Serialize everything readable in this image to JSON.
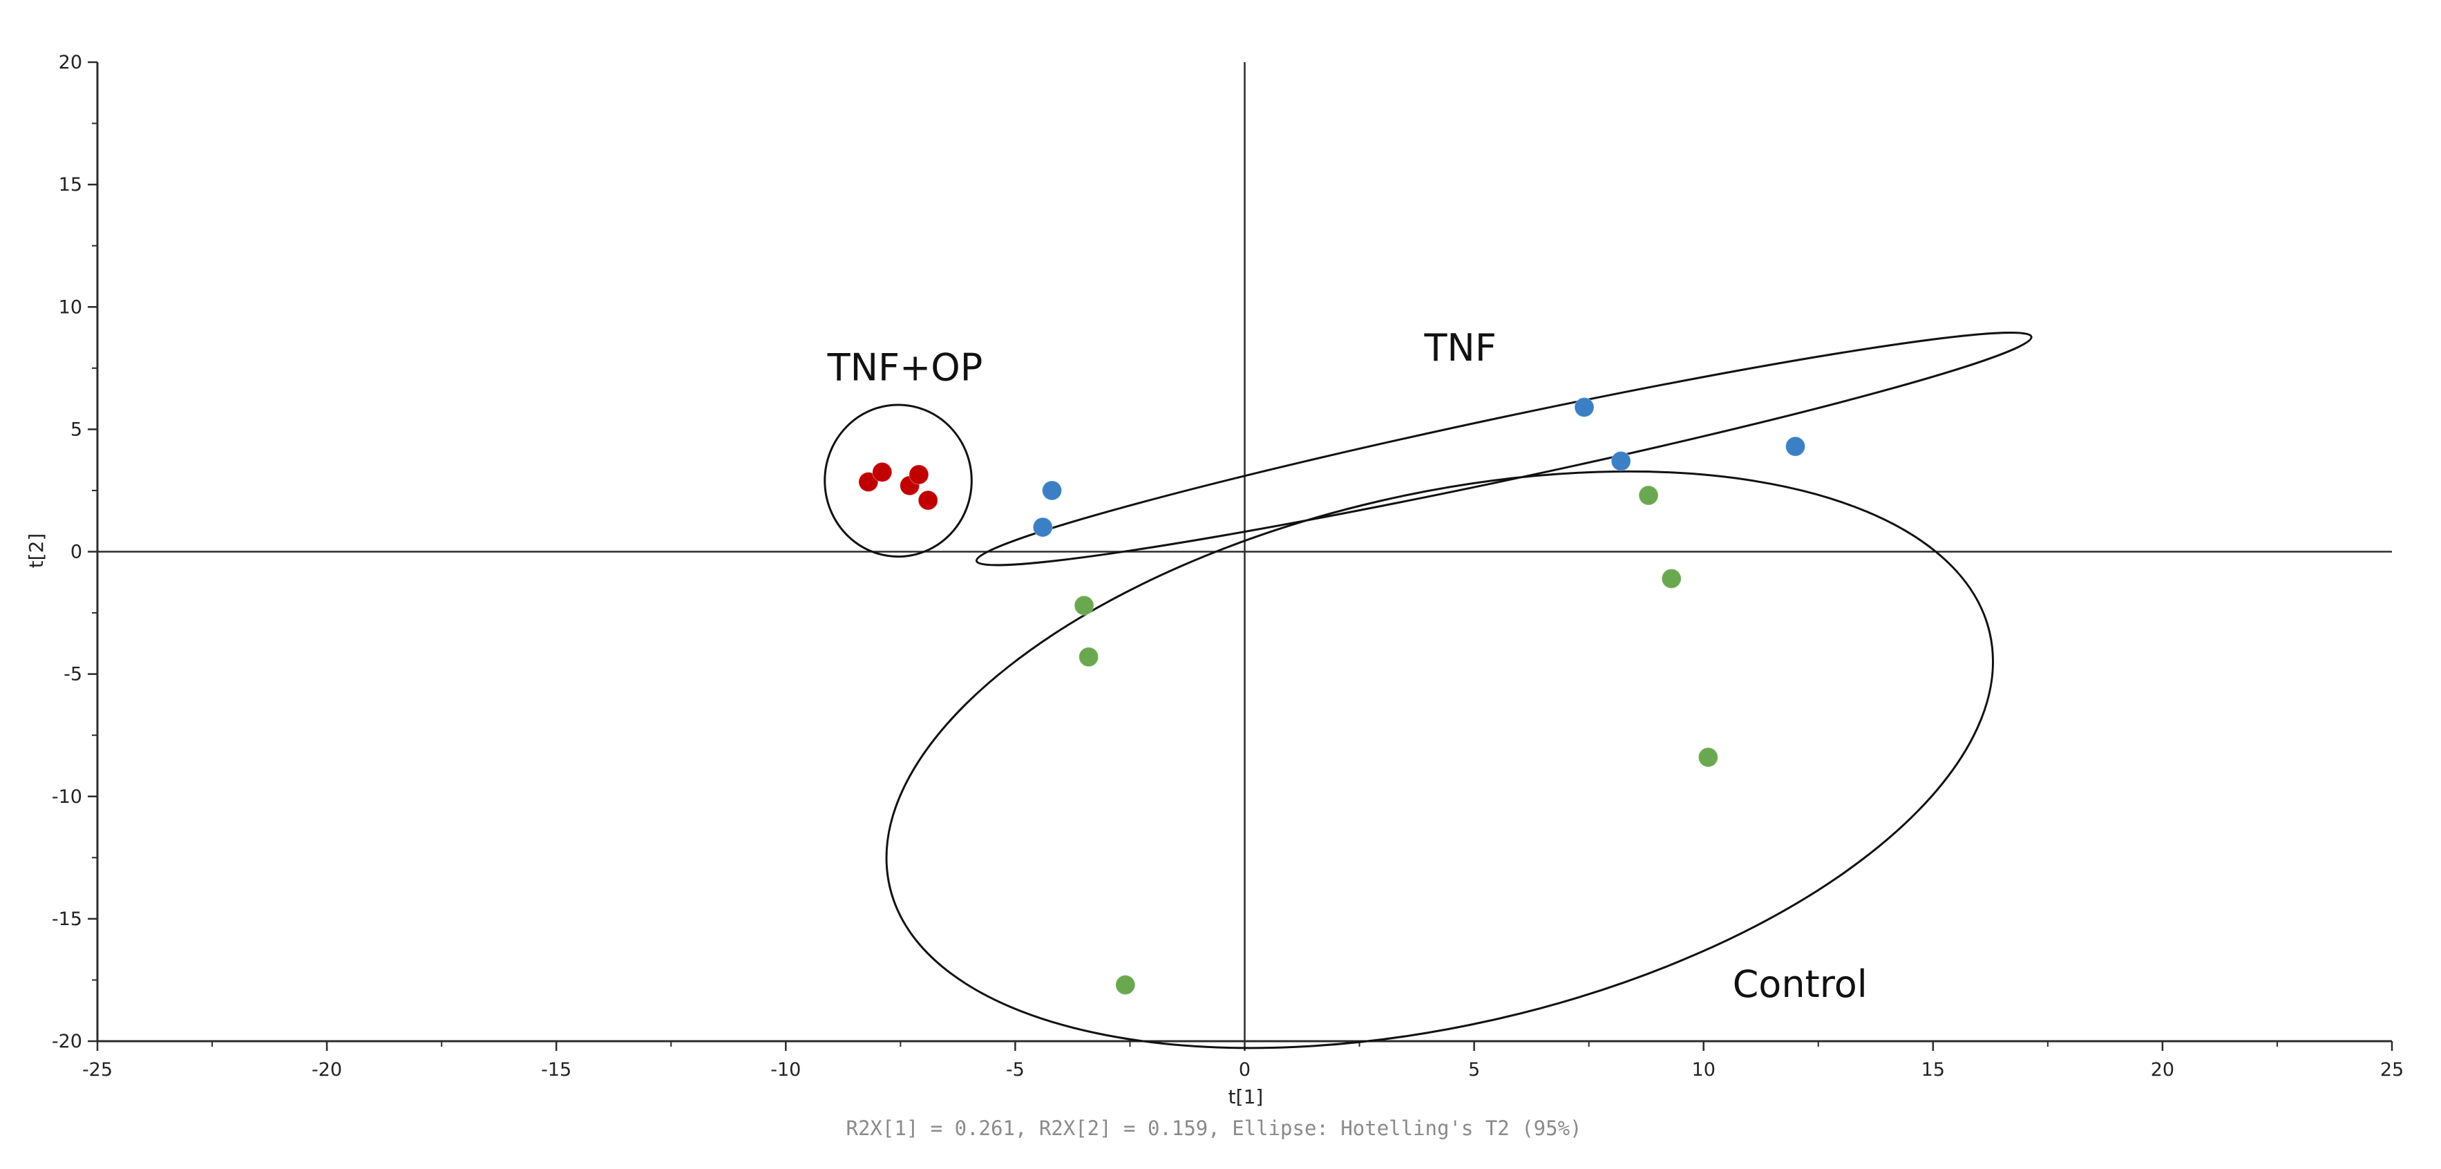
{
  "chart_data": {
    "type": "scatter",
    "title": "",
    "xlabel": "t[1]",
    "ylabel": "t[2]",
    "xlim": [
      -25,
      25
    ],
    "ylim": [
      -20,
      20
    ],
    "x_ticks": [
      -25,
      -20,
      -15,
      -10,
      -5,
      0,
      5,
      10,
      15,
      20,
      25
    ],
    "y_ticks": [
      -20,
      -15,
      -10,
      -5,
      0,
      5,
      10,
      15,
      20
    ],
    "grid": false,
    "footer": "R2X[1] = 0.261, R2X[2] = 0.159, Ellipse: Hotelling's T2 (95%)",
    "series": [
      {
        "color": "#c00000",
        "points": [
          {
            "x": -8.2,
            "y": 2.85
          },
          {
            "x": -7.9,
            "y": 3.25
          },
          {
            "x": -7.3,
            "y": 2.7
          },
          {
            "x": -7.1,
            "y": 3.15
          },
          {
            "x": -6.9,
            "y": 2.1
          }
        ]
      },
      {
        "color": "#3b7fc4",
        "points": [
          {
            "x": -4.2,
            "y": 2.5
          },
          {
            "x": -4.4,
            "y": 1.0
          },
          {
            "x": 7.4,
            "y": 5.9
          },
          {
            "x": 8.2,
            "y": 3.7
          },
          {
            "x": 12.0,
            "y": 4.3
          }
        ]
      },
      {
        "color": "#6aa84f",
        "points": [
          {
            "x": 8.8,
            "y": 2.3
          },
          {
            "x": 9.3,
            "y": -1.1
          },
          {
            "x": -3.5,
            "y": -2.2
          },
          {
            "x": -3.4,
            "y": -4.3
          },
          {
            "x": 10.1,
            "y": -8.4
          },
          {
            "x": -2.6,
            "y": -17.7
          }
        ]
      }
    ],
    "annotations": [
      {
        "text": "TNF+OP",
        "x": -7.4,
        "y": 7.0
      },
      {
        "text": "TNF",
        "x": 4.7,
        "y": 7.8
      },
      {
        "text": "Control",
        "x": 12.1,
        "y": -18.2
      }
    ],
    "ellipses": [
      {
        "group": "TNF+OP",
        "cx": -7.55,
        "cy": 2.9,
        "rx": 1.6,
        "ry": 3.1,
        "angle_deg": 0
      },
      {
        "group": "TNF",
        "cx": 5.65,
        "cy": 4.2,
        "rx": 11.75,
        "ry": 1.28,
        "angle_deg": 12.0
      },
      {
        "group": "Control",
        "cx": 4.25,
        "cy": -8.5,
        "rx": 12.3,
        "ry": 10.85,
        "angle_deg": 13.0
      }
    ]
  }
}
